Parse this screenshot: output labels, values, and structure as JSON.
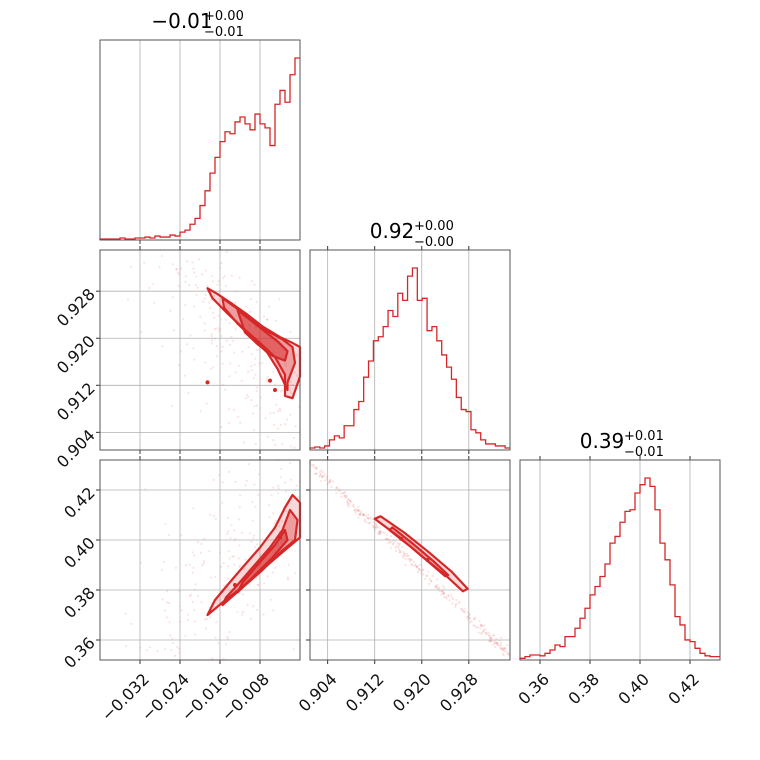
{
  "chart_data": {
    "type": "corner",
    "color": "#d62728",
    "parameters": [
      {
        "title": "−0.01",
        "err_plus": "+0.00",
        "err_minus": "−0.01",
        "range": [
          -0.04,
          0.0
        ],
        "ticks": [
          -0.032,
          -0.024,
          -0.016,
          -0.008
        ],
        "ticklabels": [
          "−0.032",
          "−0.024",
          "−0.016",
          "−0.008"
        ],
        "hist": [
          1,
          1,
          1,
          1,
          2,
          1,
          1,
          2,
          2,
          3,
          2,
          4,
          3,
          3,
          5,
          4,
          8,
          10,
          16,
          22,
          35,
          50,
          68,
          84,
          100,
          110,
          108,
          120,
          125,
          118,
          112,
          128,
          118,
          114,
          96,
          138,
          152,
          140,
          168,
          185
        ]
      },
      {
        "title": "0.92",
        "err_plus": "+0.00",
        "err_minus": "−0.00",
        "range": [
          0.901,
          0.935
        ],
        "ticks": [
          0.904,
          0.912,
          0.92,
          0.928
        ],
        "ticklabels": [
          "0.904",
          "0.912",
          "0.920",
          "0.928"
        ],
        "hist": [
          2,
          3,
          2,
          4,
          10,
          14,
          12,
          24,
          24,
          40,
          48,
          72,
          88,
          108,
          112,
          122,
          138,
          132,
          155,
          148,
          172,
          180,
          148,
          150,
          118,
          122,
          108,
          94,
          82,
          70,
          52,
          40,
          38,
          20,
          17,
          10,
          6,
          6,
          4,
          4,
          2
        ]
      },
      {
        "title": "0.39",
        "err_plus": "+0.01",
        "err_minus": "−0.01",
        "range": [
          0.352,
          0.432
        ],
        "ticks": [
          0.36,
          0.38,
          0.4,
          0.42
        ],
        "ticklabels": [
          "0.36",
          "0.38",
          "0.40",
          "0.42"
        ],
        "hist": [
          2,
          4,
          6,
          6,
          5,
          8,
          12,
          18,
          16,
          28,
          28,
          38,
          50,
          62,
          78,
          88,
          100,
          115,
          140,
          148,
          165,
          178,
          180,
          200,
          210,
          218,
          208,
          180,
          140,
          120,
          90,
          52,
          42,
          24,
          22,
          14,
          8,
          5,
          4,
          4
        ]
      }
    ],
    "pairs": [
      {
        "x_param": 0,
        "y_param": 1,
        "contours": [
          [
            [
              -0.0185,
              0.9285
            ],
            [
              -0.0165,
              0.9275
            ],
            [
              -0.0135,
              0.9258
            ],
            [
              -0.0105,
              0.924
            ],
            [
              -0.0075,
              0.922
            ],
            [
              -0.004,
              0.9202
            ],
            [
              -0.0015,
              0.9192
            ],
            [
              0.0,
              0.9185
            ],
            [
              0.0,
              0.9135
            ],
            [
              -0.0015,
              0.9098
            ],
            [
              -0.003,
              0.9102
            ],
            [
              -0.003,
              0.9138
            ],
            [
              -0.005,
              0.9168
            ],
            [
              -0.008,
              0.9192
            ],
            [
              -0.0115,
              0.9218
            ],
            [
              -0.0145,
              0.9242
            ],
            [
              -0.0175,
              0.9268
            ]
          ],
          [
            [
              -0.0155,
              0.9268
            ],
            [
              -0.0125,
              0.925
            ],
            [
              -0.0095,
              0.9232
            ],
            [
              -0.0065,
              0.9212
            ],
            [
              -0.0035,
              0.9198
            ],
            [
              -0.0015,
              0.9185
            ],
            [
              -0.001,
              0.9158
            ],
            [
              -0.0025,
              0.9125
            ],
            [
              -0.0025,
              0.9112
            ],
            [
              -0.0045,
              0.9148
            ],
            [
              -0.0065,
              0.9175
            ],
            [
              -0.0095,
              0.92
            ],
            [
              -0.0125,
              0.9225
            ],
            [
              -0.0152,
              0.9252
            ]
          ],
          [
            [
              -0.0125,
              0.9248
            ],
            [
              -0.0095,
              0.9228
            ],
            [
              -0.0068,
              0.921
            ],
            [
              -0.0045,
              0.9195
            ],
            [
              -0.0025,
              0.9178
            ],
            [
              -0.003,
              0.9162
            ],
            [
              -0.0055,
              0.917
            ],
            [
              -0.0085,
              0.919
            ],
            [
              -0.011,
              0.921
            ]
          ]
        ],
        "points": [
          [
            -0.0185,
            0.9125
          ],
          [
            -0.006,
            0.9128
          ],
          [
            -0.005,
            0.9112
          ]
        ]
      },
      {
        "x_param": 0,
        "y_param": 2,
        "contours": [
          [
            [
              -0.0185,
              0.37
            ],
            [
              -0.0155,
              0.375
            ],
            [
              -0.0105,
              0.383
            ],
            [
              -0.0065,
              0.39
            ],
            [
              -0.003,
              0.396
            ],
            [
              0.0,
              0.401
            ],
            [
              0.0,
              0.415
            ],
            [
              -0.0015,
              0.418
            ],
            [
              -0.003,
              0.413
            ],
            [
              -0.005,
              0.405
            ],
            [
              -0.008,
              0.397
            ],
            [
              -0.0115,
              0.389
            ],
            [
              -0.0145,
              0.382
            ],
            [
              -0.017,
              0.376
            ]
          ],
          [
            [
              -0.0155,
              0.374
            ],
            [
              -0.0115,
              0.381
            ],
            [
              -0.0075,
              0.388
            ],
            [
              -0.004,
              0.395
            ],
            [
              -0.001,
              0.4
            ],
            [
              -0.0005,
              0.408
            ],
            [
              -0.002,
              0.412
            ],
            [
              -0.0035,
              0.404
            ],
            [
              -0.006,
              0.397
            ],
            [
              -0.0095,
              0.389
            ],
            [
              -0.0125,
              0.382
            ],
            [
              -0.0148,
              0.377
            ]
          ],
          [
            [
              -0.0125,
              0.379
            ],
            [
              -0.009,
              0.386
            ],
            [
              -0.0055,
              0.393
            ],
            [
              -0.0025,
              0.4
            ],
            [
              -0.003,
              0.404
            ],
            [
              -0.005,
              0.398
            ],
            [
              -0.0085,
              0.39
            ],
            [
              -0.0115,
              0.383
            ]
          ]
        ],
        "points": [
          [
            -0.004,
            0.401
          ],
          [
            -0.013,
            0.382
          ]
        ]
      },
      {
        "x_param": 1,
        "y_param": 2,
        "contours": [
          [
            [
              0.912,
              0.4085
            ],
            [
              0.916,
              0.4015
            ],
            [
              0.92,
              0.3935
            ],
            [
              0.924,
              0.386
            ],
            [
              0.927,
              0.3795
            ],
            [
              0.9278,
              0.3805
            ],
            [
              0.925,
              0.3875
            ],
            [
              0.921,
              0.3955
            ],
            [
              0.917,
              0.403
            ],
            [
              0.913,
              0.4095
            ]
          ],
          [
            [
              0.9145,
              0.404
            ],
            [
              0.918,
              0.3975
            ],
            [
              0.9215,
              0.3905
            ],
            [
              0.924,
              0.3855
            ],
            [
              0.9245,
              0.386
            ],
            [
              0.922,
              0.3915
            ],
            [
              0.9185,
              0.3985
            ],
            [
              0.915,
              0.405
            ]
          ]
        ],
        "points": [
          [
            0.9165,
            0.4005
          ],
          [
            0.921,
            0.392
          ]
        ]
      }
    ]
  }
}
